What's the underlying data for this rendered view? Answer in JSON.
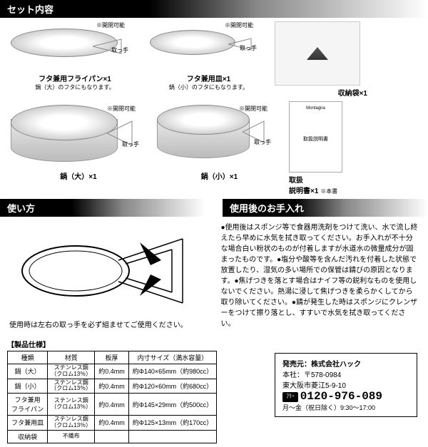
{
  "sections": {
    "set_contents": "セット内容",
    "usage": "使い方",
    "care": "使用後のお手入れ"
  },
  "products": {
    "frying_pan": {
      "name": "フタ兼用フライパン×1",
      "sub": "鍋（大）のフタにもなります。",
      "hinge": "※開閉可能",
      "handle": "取っ手"
    },
    "plate": {
      "name": "フタ兼用皿×1",
      "sub": "鍋（小）のフタにもなります。",
      "hinge": "※開閉可能",
      "handle": "取っ手"
    },
    "bag": {
      "name": "収納袋×1"
    },
    "pot_large": {
      "name": "鍋（大）×1",
      "hinge": "※開閉可能",
      "handle": "取っ手"
    },
    "pot_small": {
      "name": "鍋（小）×1",
      "hinge": "※開閉可能",
      "handle": "取っ手"
    },
    "manual": {
      "name": "取扱\n説明書×1",
      "note": "※本書",
      "top": "Montagna",
      "body": "取扱説明書"
    }
  },
  "usage_text": "使用時は左右の取っ手を必ず組ませてご使用ください。",
  "care_text": "●使用後はスポンジ等で食器用洗剤をつけて洗い、水で流し終えたら早めに水気を拭き取ってください。お手入れが不十分な場合白い粉状のものが付着しますが水道水の微量成分が固まったものです。●塩分や酸等を含んだ汚れを付着した状態で放置したり、湿気の多い場所での保管は錆びの原因となります。●焦げつきを落とす場合はナイフ等の鋭利なものを使用しないでください。熱湯に浸して焦げつきを柔らかくしてから取り除いてください。●錆が発生した時はスポンジにクレンザーをつけて擦り落とし、すすいで水気を拭き取ってください。",
  "specs": {
    "title": "【製品仕様】",
    "headers": [
      "種類",
      "材質",
      "板厚",
      "内寸サイズ（満水容量）"
    ],
    "rows": [
      [
        "鍋（大）",
        "ステンレス鋼\n（クロム13％）",
        "約0.4mm",
        "約Φ140×65mm（約980cc）"
      ],
      [
        "鍋（小）",
        "ステンレス鋼\n（クロム13％）",
        "約0.4mm",
        "約Φ120×60mm（約680cc）"
      ],
      [
        "フタ兼用\nフライパン",
        "ステンレス鋼\n（クロム13％）",
        "約0.4mm",
        "約Φ145×29mm（約500cc）"
      ],
      [
        "フタ兼用皿",
        "ステンレス鋼\n（クロム13％）",
        "約0.4mm",
        "約Φ125×13mm（約170cc）"
      ],
      [
        "収納袋",
        "不織布",
        "",
        ""
      ]
    ]
  },
  "seller": {
    "label": "発売元：株式会社ハック",
    "addr1": "本社：〒578-0984",
    "addr2": "東大阪市菱江5-9-10",
    "tel": "0120-976-089",
    "hours": "月～金（祝日除く）9:30～17:00"
  }
}
